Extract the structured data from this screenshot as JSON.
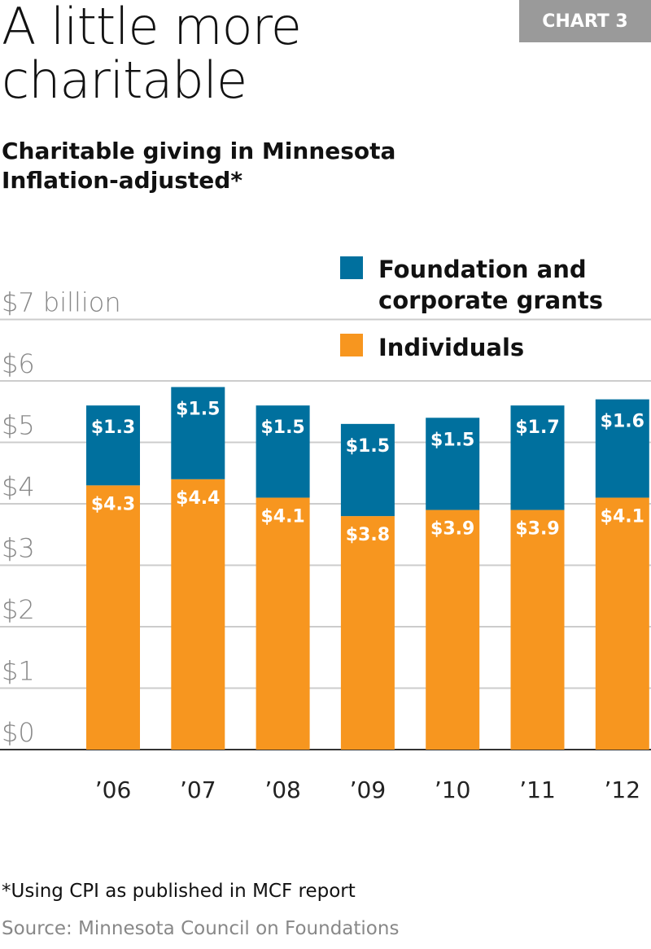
{
  "badge": "CHART 3",
  "title_line1": "A little more",
  "title_line2": "charitable",
  "subtitle_line1": "Charitable giving in Minnesota",
  "subtitle_line2": "Inflation-adjusted*",
  "footnote": "*Using CPI as published in MCF report",
  "source": "Source: Minnesota Council on Foundations",
  "colors": {
    "foundation": "#00709e",
    "individuals": "#f7961f",
    "grid": "#cccccc",
    "axis_text": "#888888"
  },
  "chart_data": {
    "type": "bar",
    "stacked": true,
    "categories": [
      "’06",
      "’07",
      "’08",
      "’09",
      "’10",
      "’11",
      "’12"
    ],
    "series": [
      {
        "name": "Individuals",
        "values": [
          4.3,
          4.4,
          4.1,
          3.8,
          3.9,
          3.9,
          4.1
        ],
        "labels": [
          "$4.3",
          "$4.4",
          "$4.1",
          "$3.8",
          "$3.9",
          "$3.9",
          "$4.1"
        ]
      },
      {
        "name": "Foundation and corporate grants",
        "values": [
          1.3,
          1.5,
          1.5,
          1.5,
          1.5,
          1.7,
          1.6
        ],
        "labels": [
          "$1.3",
          "$1.5",
          "$1.5",
          "$1.5",
          "$1.5",
          "$1.7",
          "$1.6"
        ]
      }
    ],
    "legend_lines": [
      [
        "Foundation and",
        "corporate grants"
      ],
      [
        "Individuals"
      ]
    ],
    "yticks": [
      "$0",
      "$1",
      "$2",
      "$3",
      "$4",
      "$5",
      "$6",
      "$7 billion"
    ],
    "ylim": [
      0,
      7
    ],
    "grid": true,
    "legend_placement": "top-right"
  }
}
